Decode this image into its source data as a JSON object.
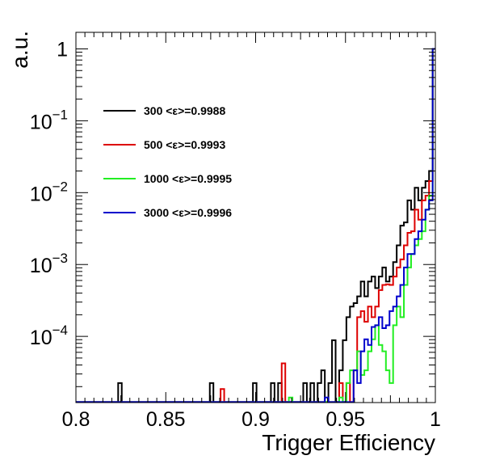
{
  "chart_data": {
    "type": "line",
    "step": true,
    "xlabel": "Trigger Efficiency",
    "ylabel": "a.u.",
    "xlim": [
      0.8,
      1.0
    ],
    "ylim": [
      1.2e-05,
      1.7
    ],
    "yscale": "log",
    "grid": false,
    "legend_position": "upper-left",
    "x_ticks": [
      {
        "value": 0.8,
        "label": "0.8"
      },
      {
        "value": 0.85,
        "label": "0.85"
      },
      {
        "value": 0.9,
        "label": "0.9"
      },
      {
        "value": 0.95,
        "label": "0.95"
      },
      {
        "value": 1.0,
        "label": "1"
      }
    ],
    "y_ticks": [
      {
        "value": 1,
        "base": "1",
        "exp": ""
      },
      {
        "value": 0.1,
        "base": "10",
        "exp": "−1"
      },
      {
        "value": 0.01,
        "base": "10",
        "exp": "−2"
      },
      {
        "value": 0.001,
        "base": "10",
        "exp": "−3"
      },
      {
        "value": 0.0001,
        "base": "10",
        "exp": "−4"
      }
    ],
    "series": [
      {
        "name": "300 <ε>=0.9988",
        "color": "#000000",
        "points": [
          [
            0.8,
            1.22e-05
          ],
          [
            0.8235,
            1.22e-05
          ],
          [
            0.8235,
            2.24e-05
          ],
          [
            0.8255,
            2.24e-05
          ],
          [
            0.8255,
            1.22e-05
          ],
          [
            0.8745,
            1.22e-05
          ],
          [
            0.8745,
            2.24e-05
          ],
          [
            0.8765,
            2.24e-05
          ],
          [
            0.8765,
            1.22e-05
          ],
          [
            0.8985,
            1.22e-05
          ],
          [
            0.8985,
            2.24e-05
          ],
          [
            0.9005,
            2.24e-05
          ],
          [
            0.9005,
            1.22e-05
          ],
          [
            0.9085,
            1.22e-05
          ],
          [
            0.9085,
            2.24e-05
          ],
          [
            0.9105,
            2.24e-05
          ],
          [
            0.9105,
            1.22e-05
          ],
          [
            0.9125,
            1.22e-05
          ],
          [
            0.9125,
            2.24e-05
          ],
          [
            0.9145,
            2.24e-05
          ],
          [
            0.9145,
            1.22e-05
          ],
          [
            0.9265,
            1.22e-05
          ],
          [
            0.9265,
            2.24e-05
          ],
          [
            0.9285,
            2.24e-05
          ],
          [
            0.9285,
            1.22e-05
          ],
          [
            0.9305,
            1.22e-05
          ],
          [
            0.9305,
            2.24e-05
          ],
          [
            0.9325,
            2.24e-05
          ],
          [
            0.9325,
            1.22e-05
          ],
          [
            0.9345,
            1.22e-05
          ],
          [
            0.9345,
            2.24e-05
          ],
          [
            0.9365,
            2.24e-05
          ],
          [
            0.9365,
            3.37e-05
          ],
          [
            0.9385,
            3.37e-05
          ],
          [
            0.9385,
            1.22e-05
          ],
          [
            0.9405,
            1.22e-05
          ],
          [
            0.9405,
            2.24e-05
          ],
          [
            0.9425,
            2.24e-05
          ],
          [
            0.9425,
            8.85e-05
          ],
          [
            0.9445,
            8.85e-05
          ],
          [
            0.9445,
            1.22e-05
          ],
          [
            0.9465,
            1.22e-05
          ],
          [
            0.9465,
            3.37e-05
          ],
          [
            0.9485,
            3.37e-05
          ],
          [
            0.9485,
            8.85e-05
          ],
          [
            0.9505,
            8.85e-05
          ],
          [
            0.9505,
            0.000185
          ],
          [
            0.9525,
            0.000185
          ],
          [
            0.9525,
            0.00026
          ],
          [
            0.9545,
            0.00026
          ],
          [
            0.9545,
            0.00029
          ],
          [
            0.9565,
            0.00029
          ],
          [
            0.9565,
            0.00036
          ],
          [
            0.9585,
            0.00036
          ],
          [
            0.9585,
            0.00058
          ],
          [
            0.9605,
            0.00058
          ],
          [
            0.9605,
            0.00036
          ],
          [
            0.9625,
            0.00036
          ],
          [
            0.9625,
            0.00058
          ],
          [
            0.9645,
            0.00058
          ],
          [
            0.9645,
            0.00068
          ],
          [
            0.9665,
            0.00068
          ],
          [
            0.9665,
            0.00047
          ],
          [
            0.9685,
            0.00047
          ],
          [
            0.9685,
            0.00068
          ],
          [
            0.9705,
            0.00068
          ],
          [
            0.9705,
            0.00091
          ],
          [
            0.9725,
            0.00091
          ],
          [
            0.9725,
            0.00058
          ],
          [
            0.9745,
            0.00058
          ],
          [
            0.9745,
            0.00068
          ],
          [
            0.9765,
            0.00068
          ],
          [
            0.9765,
            0.00108
          ],
          [
            0.9785,
            0.00108
          ],
          [
            0.9785,
            0.00185
          ],
          [
            0.9805,
            0.00185
          ],
          [
            0.9805,
            0.00347
          ],
          [
            0.9825,
            0.00347
          ],
          [
            0.9825,
            0.00385
          ],
          [
            0.9845,
            0.00385
          ],
          [
            0.9845,
            0.0078
          ],
          [
            0.9865,
            0.0078
          ],
          [
            0.9865,
            0.0058
          ],
          [
            0.9885,
            0.0058
          ],
          [
            0.9885,
            0.0117
          ],
          [
            0.9905,
            0.0117
          ],
          [
            0.9905,
            0.0078
          ],
          [
            0.9925,
            0.0078
          ],
          [
            0.9925,
            0.0117
          ],
          [
            0.9945,
            0.0117
          ],
          [
            0.9945,
            0.0145
          ],
          [
            0.9965,
            0.0145
          ],
          [
            0.9965,
            0.02
          ],
          [
            0.9985,
            0.02
          ],
          [
            0.9985,
            1.0
          ],
          [
            1.0,
            1.0
          ]
        ]
      },
      {
        "name": "500 <ε>=0.9993",
        "color": "#dd0000",
        "points": [
          [
            0.8,
            1.22e-05
          ],
          [
            0.8805,
            1.22e-05
          ],
          [
            0.8805,
            1.85e-05
          ],
          [
            0.8825,
            1.85e-05
          ],
          [
            0.8825,
            1.22e-05
          ],
          [
            0.9145,
            1.22e-05
          ],
          [
            0.9145,
            4.21e-05
          ],
          [
            0.9165,
            4.21e-05
          ],
          [
            0.9165,
            1.22e-05
          ],
          [
            0.9465,
            1.22e-05
          ],
          [
            0.9465,
            2.24e-05
          ],
          [
            0.9485,
            2.24e-05
          ],
          [
            0.9485,
            1.22e-05
          ],
          [
            0.9505,
            1.22e-05
          ],
          [
            0.9505,
            2.24e-05
          ],
          [
            0.9525,
            2.24e-05
          ],
          [
            0.9525,
            1.22e-05
          ],
          [
            0.9545,
            1.22e-05
          ],
          [
            0.9545,
            3.37e-05
          ],
          [
            0.9565,
            3.37e-05
          ],
          [
            0.9565,
            0.000185
          ],
          [
            0.9585,
            0.000185
          ],
          [
            0.9585,
            0.000225
          ],
          [
            0.9605,
            0.000225
          ],
          [
            0.9605,
            0.00016
          ],
          [
            0.9625,
            0.00016
          ],
          [
            0.9625,
            0.00026
          ],
          [
            0.9645,
            0.00026
          ],
          [
            0.9645,
            0.000185
          ],
          [
            0.9665,
            0.000185
          ],
          [
            0.9665,
            0.00026
          ],
          [
            0.9685,
            0.00026
          ],
          [
            0.9685,
            0.00044
          ],
          [
            0.9705,
            0.00044
          ],
          [
            0.9705,
            0.00052
          ],
          [
            0.9725,
            0.00052
          ],
          [
            0.9725,
            0.00053
          ],
          [
            0.9745,
            0.00053
          ],
          [
            0.9745,
            0.00052
          ],
          [
            0.9765,
            0.00052
          ],
          [
            0.9765,
            0.00068
          ],
          [
            0.9785,
            0.00068
          ],
          [
            0.9785,
            0.00091
          ],
          [
            0.9805,
            0.00091
          ],
          [
            0.9805,
            0.00118
          ],
          [
            0.9825,
            0.00118
          ],
          [
            0.9825,
            0.00185
          ],
          [
            0.9845,
            0.00185
          ],
          [
            0.9845,
            0.00276
          ],
          [
            0.9865,
            0.00276
          ],
          [
            0.9865,
            0.0029
          ],
          [
            0.9885,
            0.0029
          ],
          [
            0.9885,
            0.0058
          ],
          [
            0.9905,
            0.0058
          ],
          [
            0.9905,
            0.0042
          ],
          [
            0.9925,
            0.0042
          ],
          [
            0.9925,
            0.0078
          ],
          [
            0.9945,
            0.0078
          ],
          [
            0.9945,
            0.0091
          ],
          [
            0.9965,
            0.0091
          ],
          [
            0.9965,
            0.0145
          ],
          [
            0.9985,
            0.0145
          ],
          [
            0.9985,
            1.0
          ],
          [
            1.0,
            1.0
          ]
        ]
      },
      {
        "name": "1000 <ε>=0.9995",
        "color": "#22ee22",
        "points": [
          [
            0.8,
            1.22e-05
          ],
          [
            0.9185,
            1.22e-05
          ],
          [
            0.9185,
            1.41e-05
          ],
          [
            0.9205,
            1.41e-05
          ],
          [
            0.9205,
            1.22e-05
          ],
          [
            0.9465,
            1.22e-05
          ],
          [
            0.9465,
            1.41e-05
          ],
          [
            0.9485,
            1.41e-05
          ],
          [
            0.9485,
            1.22e-05
          ],
          [
            0.9505,
            1.22e-05
          ],
          [
            0.9505,
            2.24e-05
          ],
          [
            0.9525,
            2.24e-05
          ],
          [
            0.9525,
            3.37e-05
          ],
          [
            0.9545,
            3.37e-05
          ],
          [
            0.9545,
            3.37e-05
          ],
          [
            0.9565,
            3.37e-05
          ],
          [
            0.9565,
            6.2e-05
          ],
          [
            0.9585,
            6.2e-05
          ],
          [
            0.9585,
            2.9e-05
          ],
          [
            0.9605,
            2.9e-05
          ],
          [
            0.9605,
            3.37e-05
          ],
          [
            0.9625,
            3.37e-05
          ],
          [
            0.9625,
            6.2e-05
          ],
          [
            0.9645,
            6.2e-05
          ],
          [
            0.9645,
            9.1e-05
          ],
          [
            0.9665,
            9.1e-05
          ],
          [
            0.9665,
            0.000143
          ],
          [
            0.9685,
            0.000143
          ],
          [
            0.9685,
            7.6e-05
          ],
          [
            0.9705,
            7.6e-05
          ],
          [
            0.9705,
            6.2e-05
          ],
          [
            0.9725,
            6.2e-05
          ],
          [
            0.9725,
            3.37e-05
          ],
          [
            0.9745,
            3.37e-05
          ],
          [
            0.9745,
            2.24e-05
          ],
          [
            0.9765,
            2.24e-05
          ],
          [
            0.9765,
            0.000143
          ],
          [
            0.9785,
            0.000143
          ],
          [
            0.9785,
            0.00026
          ],
          [
            0.9805,
            0.00026
          ],
          [
            0.9805,
            0.000185
          ],
          [
            0.9825,
            0.000185
          ],
          [
            0.9825,
            0.00052
          ],
          [
            0.9845,
            0.00052
          ],
          [
            0.9845,
            0.00091
          ],
          [
            0.9865,
            0.00091
          ],
          [
            0.9865,
            0.0014
          ],
          [
            0.9885,
            0.0014
          ],
          [
            0.9885,
            0.00185
          ],
          [
            0.9905,
            0.00185
          ],
          [
            0.9905,
            0.00226
          ],
          [
            0.9925,
            0.00226
          ],
          [
            0.9925,
            0.0029
          ],
          [
            0.9945,
            0.0029
          ],
          [
            0.9945,
            0.0058
          ],
          [
            0.9965,
            0.0058
          ],
          [
            0.9965,
            0.0091
          ],
          [
            0.9985,
            0.0091
          ],
          [
            0.9985,
            1.0
          ],
          [
            1.0,
            1.0
          ]
        ]
      },
      {
        "name": "3000 <ε>=0.9996",
        "color": "#0000cc",
        "points": [
          [
            0.8,
            1.22e-05
          ],
          [
            0.9385,
            1.22e-05
          ],
          [
            0.9385,
            1.41e-05
          ],
          [
            0.9405,
            1.41e-05
          ],
          [
            0.9405,
            1.22e-05
          ],
          [
            0.9545,
            1.22e-05
          ],
          [
            0.9545,
            3.37e-05
          ],
          [
            0.9565,
            3.37e-05
          ],
          [
            0.9565,
            2.24e-05
          ],
          [
            0.9585,
            2.24e-05
          ],
          [
            0.9585,
            6.2e-05
          ],
          [
            0.9605,
            6.2e-05
          ],
          [
            0.9605,
            9.1e-05
          ],
          [
            0.9625,
            9.1e-05
          ],
          [
            0.9625,
            7.6e-05
          ],
          [
            0.9645,
            7.6e-05
          ],
          [
            0.9645,
            0.000135
          ],
          [
            0.9665,
            0.000135
          ],
          [
            0.9665,
            0.000143
          ],
          [
            0.9685,
            0.000143
          ],
          [
            0.9685,
            0.000185
          ],
          [
            0.9705,
            0.000185
          ],
          [
            0.9705,
            0.00013
          ],
          [
            0.9725,
            0.00013
          ],
          [
            0.9725,
            0.000143
          ],
          [
            0.9745,
            0.000143
          ],
          [
            0.9745,
            0.000225
          ],
          [
            0.9765,
            0.000225
          ],
          [
            0.9765,
            0.00026
          ],
          [
            0.9785,
            0.00026
          ],
          [
            0.9785,
            0.00036
          ],
          [
            0.9805,
            0.00036
          ],
          [
            0.9805,
            0.00052
          ],
          [
            0.9825,
            0.00052
          ],
          [
            0.9825,
            0.00091
          ],
          [
            0.9845,
            0.00091
          ],
          [
            0.9845,
            0.0014
          ],
          [
            0.9865,
            0.0014
          ],
          [
            0.9865,
            0.0014
          ],
          [
            0.9885,
            0.0014
          ],
          [
            0.9885,
            0.00226
          ],
          [
            0.9905,
            0.00226
          ],
          [
            0.9905,
            0.0029
          ],
          [
            0.9925,
            0.0029
          ],
          [
            0.9925,
            0.0042
          ],
          [
            0.9945,
            0.0042
          ],
          [
            0.9945,
            0.0058
          ],
          [
            0.9965,
            0.0058
          ],
          [
            0.9965,
            0.0078
          ],
          [
            0.9985,
            0.0078
          ],
          [
            0.9985,
            1.0
          ],
          [
            1.0,
            1.0
          ]
        ]
      }
    ]
  }
}
